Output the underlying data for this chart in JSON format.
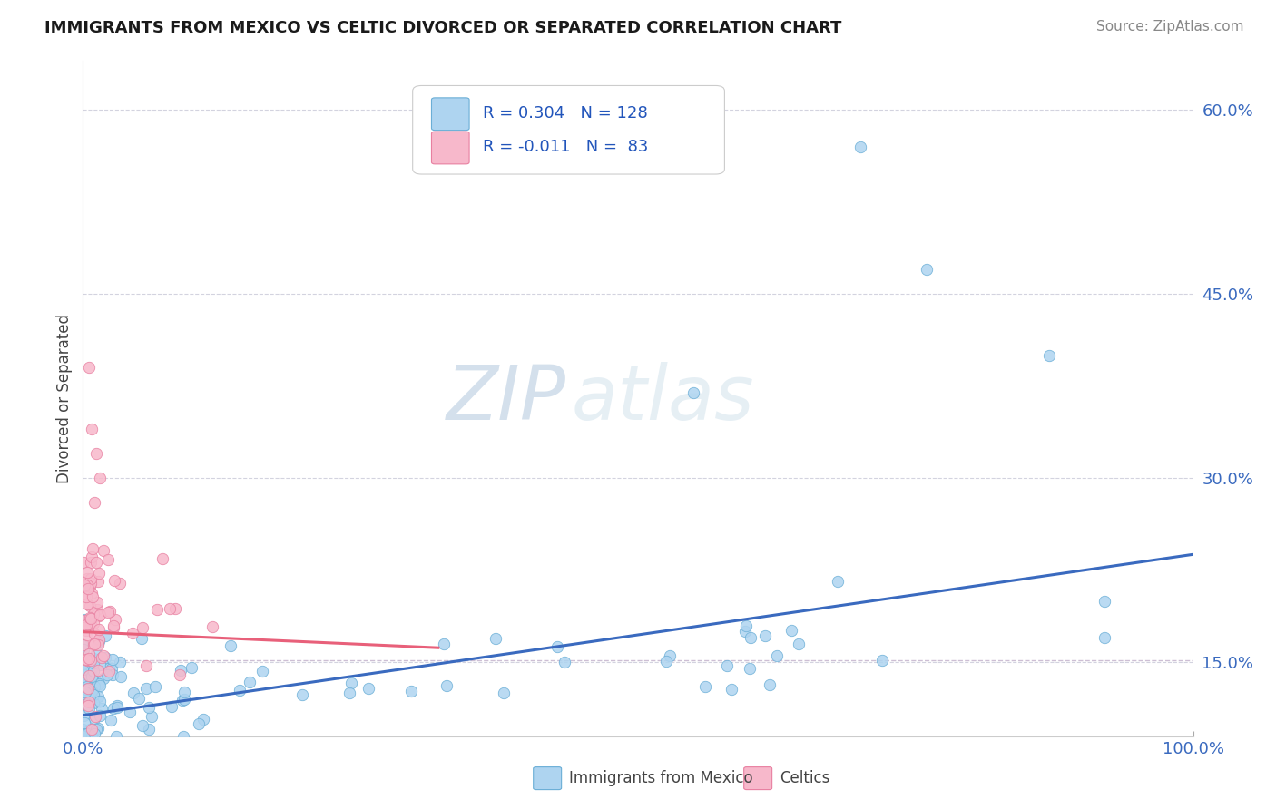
{
  "title": "IMMIGRANTS FROM MEXICO VS CELTIC DIVORCED OR SEPARATED CORRELATION CHART",
  "source_text": "Source: ZipAtlas.com",
  "ylabel": "Divorced or Separated",
  "legend_label_1": "Immigrants from Mexico",
  "legend_label_2": "Celtics",
  "r1": 0.304,
  "n1": 128,
  "r2": -0.011,
  "n2": 83,
  "color1": "#aed4f0",
  "color2": "#f7b8cb",
  "edge_color1": "#6aaed6",
  "edge_color2": "#e87fa0",
  "line_color1": "#3a6abf",
  "line_color2": "#e8607a",
  "dashed_line_color": "#c8b8d0",
  "watermark_zip": "ZIP",
  "watermark_atlas": "atlas",
  "xlim": [
    0.0,
    1.0
  ],
  "ylim": [
    0.09,
    0.64
  ],
  "x_ticks": [
    0.0,
    1.0
  ],
  "x_tick_labels": [
    "0.0%",
    "100.0%"
  ],
  "y_ticks": [
    0.15,
    0.3,
    0.45,
    0.6
  ],
  "y_tick_labels": [
    "15.0%",
    "30.0%",
    "45.0%",
    "60.0%"
  ],
  "grid_color": "#c8c8d8",
  "background_color": "#ffffff",
  "blue_line_x0": 0.0,
  "blue_line_x1": 1.0,
  "blue_line_y0": 0.107,
  "blue_line_y1": 0.238,
  "pink_line_x0": 0.0,
  "pink_line_x1": 0.32,
  "pink_line_y0": 0.175,
  "pink_line_y1": 0.162,
  "dashed_line_y": 0.152,
  "title_fontsize": 13,
  "source_fontsize": 11,
  "tick_fontsize": 13,
  "ylabel_fontsize": 12,
  "legend_fontsize": 13
}
